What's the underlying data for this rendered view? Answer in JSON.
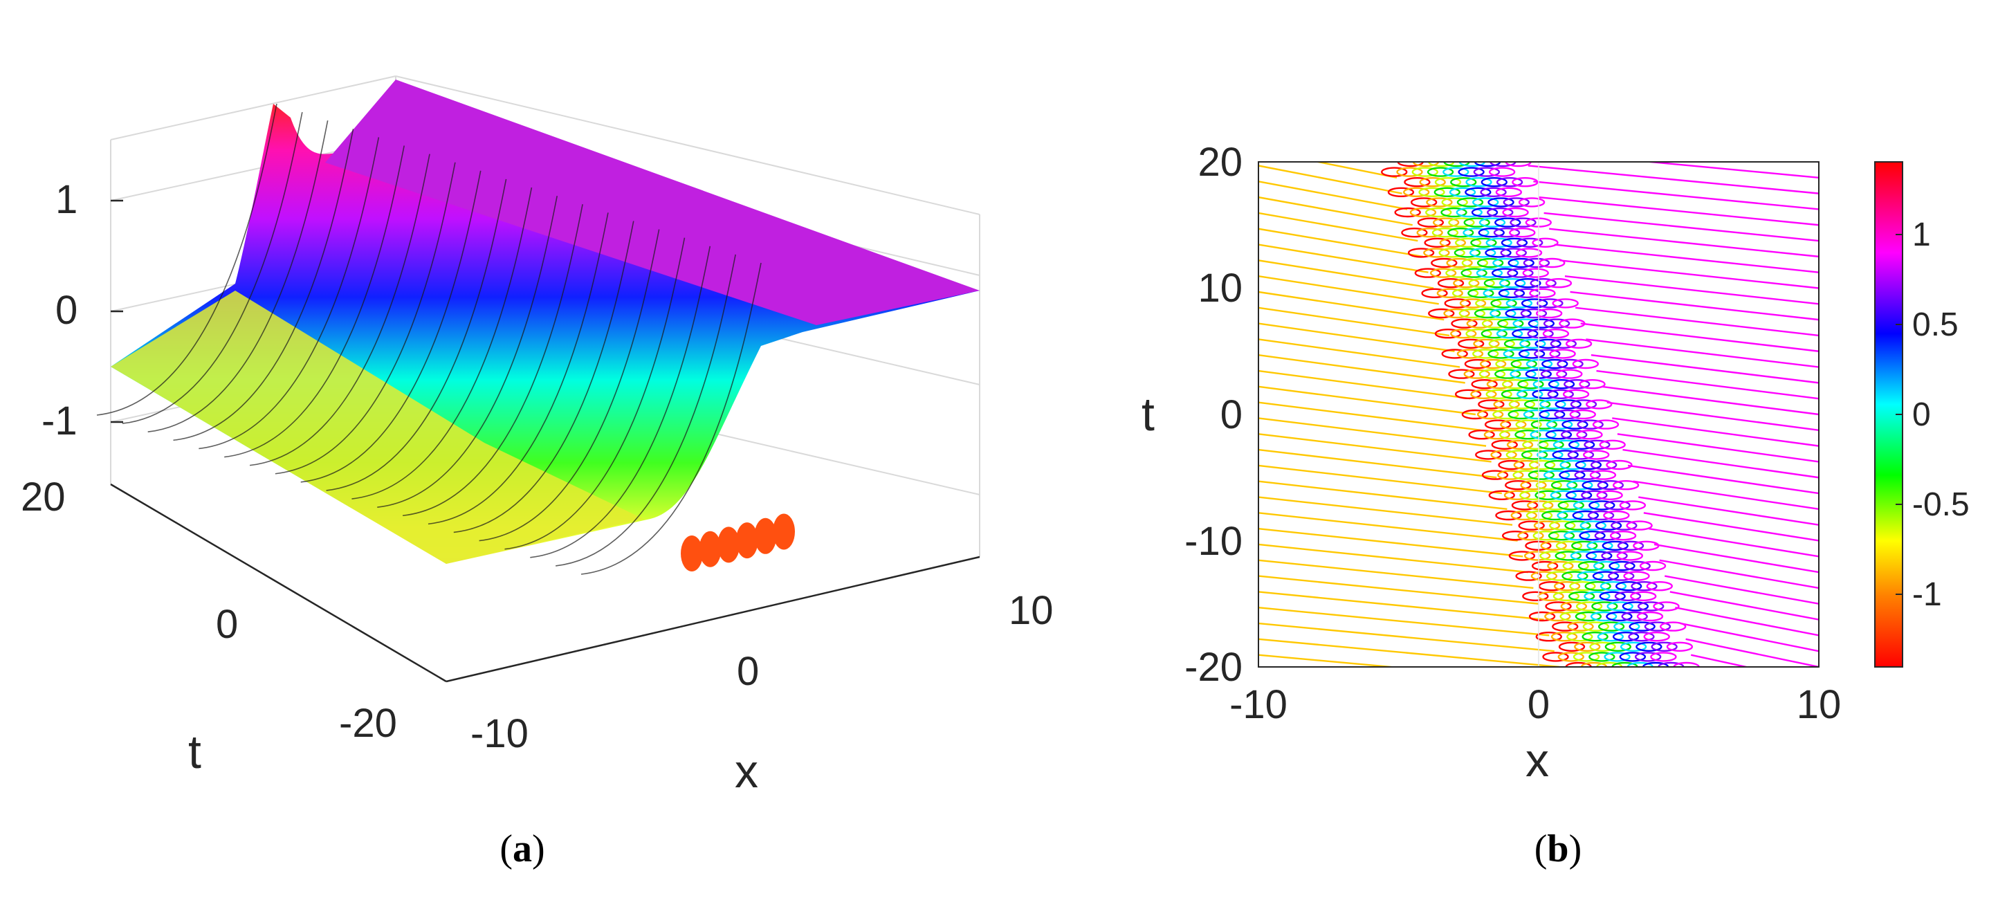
{
  "panels": [
    {
      "open": "(",
      "letter": "a",
      "close": ")"
    },
    {
      "open": "(",
      "letter": "b",
      "close": ")"
    }
  ],
  "chart_data": [
    {
      "type": "surface",
      "panel": "(a)",
      "xlabel": "x",
      "ylabel": "t",
      "xlim": [
        -10,
        10
      ],
      "ylim": [
        -20,
        20
      ],
      "zlim": [
        -1.5,
        1.5
      ],
      "xticks": [
        "-10",
        "0",
        "10"
      ],
      "yticks": [
        "-20",
        "0",
        "20"
      ],
      "zticks": [
        "-1",
        "0",
        "1"
      ],
      "z_far_left": -1,
      "z_far_right": 1,
      "front_edge_peaks_x": [
        0,
        0.7,
        1.4,
        2.1,
        2.8,
        3.5
      ],
      "colormap": "hsv",
      "grid": true
    },
    {
      "type": "contour",
      "panel": "(b)",
      "xlabel": "x",
      "ylabel": "t",
      "xlim": [
        -10,
        10
      ],
      "ylim": [
        -20,
        20
      ],
      "xticks": [
        "-10",
        "0",
        "10"
      ],
      "yticks": [
        "-20",
        "-10",
        "0",
        "10",
        "20"
      ],
      "front_center_x_at_t": {
        "t": [
          -20,
          0,
          20
        ],
        "x": [
          3,
          0,
          -3
        ]
      },
      "front_width_x": 4.5,
      "level_min": -1.2,
      "level_max": 1.2,
      "colorbar": {
        "ticks": [
          "1",
          "0.5",
          "0",
          "-0.5",
          "-1"
        ],
        "range": [
          -1.4,
          1.4
        ],
        "colors": [
          "#ff0000",
          "#ff8000",
          "#ffff00",
          "#00ff00",
          "#00ffff",
          "#0000ff",
          "#ff00ff",
          "#ff0000"
        ]
      }
    }
  ]
}
